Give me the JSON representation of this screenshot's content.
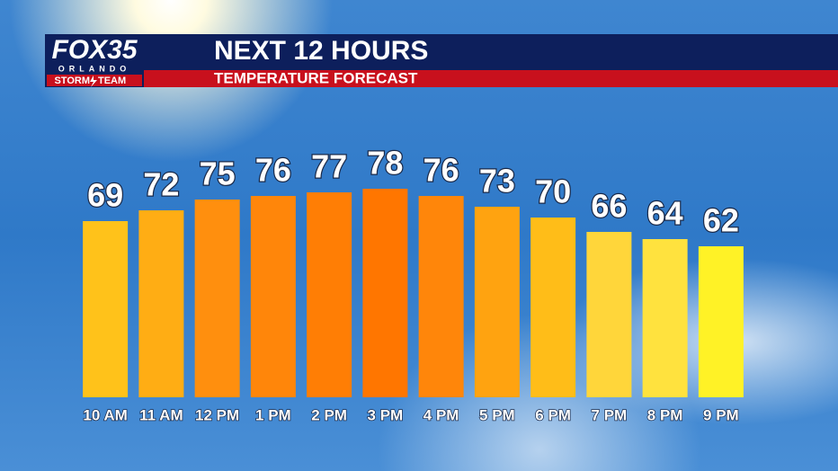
{
  "logo": {
    "brand": "FOX35",
    "city": "ORLANDO",
    "team_left": "STORM",
    "team_right": "TEAM"
  },
  "chart_data": {
    "type": "bar",
    "title": "NEXT 12 HOURS",
    "subtitle": "TEMPERATURE FORECAST",
    "categories": [
      "10 AM",
      "11 AM",
      "12 PM",
      "1 PM",
      "2 PM",
      "3 PM",
      "4 PM",
      "5 PM",
      "6 PM",
      "7 PM",
      "8 PM",
      "9 PM"
    ],
    "values": [
      69,
      72,
      75,
      76,
      77,
      78,
      76,
      73,
      70,
      66,
      64,
      62
    ],
    "colors": [
      "#ffc21a",
      "#ffad14",
      "#ff8f0e",
      "#ff860a",
      "#ff7e05",
      "#ff7600",
      "#ff860a",
      "#ffa310",
      "#ffbd18",
      "#ffd63a",
      "#ffe23e",
      "#fff226"
    ],
    "ylim": [
      20,
      80
    ]
  }
}
